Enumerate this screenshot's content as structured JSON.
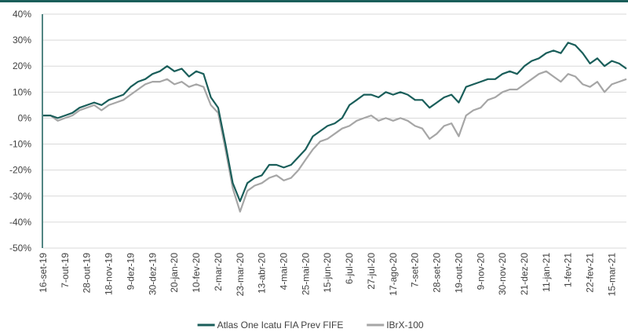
{
  "chart_data": {
    "type": "line",
    "x": [
      "16-set-19",
      null,
      null,
      "7-out-19",
      null,
      null,
      "28-out-19",
      null,
      null,
      "18-nov-19",
      null,
      null,
      "9-dez-19",
      null,
      null,
      "30-dez-19",
      null,
      null,
      "20-jan-20",
      null,
      null,
      "10-fev-20",
      null,
      null,
      "2-mar-20",
      null,
      null,
      "23-mar-20",
      null,
      null,
      "13-abr-20",
      null,
      null,
      "4-mai-20",
      null,
      null,
      "25-mai-20",
      null,
      null,
      "15-jun-20",
      null,
      null,
      "6-jul-20",
      null,
      null,
      "27-jul-20",
      null,
      null,
      "17-ago-20",
      null,
      null,
      "7-set-20",
      null,
      null,
      "28-set-20",
      null,
      null,
      "19-out-20",
      null,
      null,
      "9-nov-20",
      null,
      null,
      "30-nov-20",
      null,
      null,
      "21-dez-20",
      null,
      null,
      "11-jan-21",
      null,
      null,
      "1-fev-21",
      null,
      null,
      "22-fev-21",
      null,
      null,
      "15-mar-21",
      null,
      null
    ],
    "series": [
      {
        "name": "Atlas One Icatu FIA Prev FIFE",
        "color": "#1a5e5a",
        "values": [
          1,
          1,
          0,
          1,
          2,
          4,
          5,
          6,
          5,
          7,
          8,
          9,
          12,
          14,
          15,
          17,
          18,
          20,
          18,
          19,
          16,
          18,
          17,
          8,
          4,
          -10,
          -25,
          -32,
          -25,
          -23,
          -22,
          -18,
          -18,
          -19,
          -18,
          -15,
          -12,
          -7,
          -5,
          -3,
          -2,
          0,
          5,
          7,
          9,
          9,
          8,
          10,
          9,
          10,
          9,
          7,
          7,
          4,
          6,
          8,
          9,
          6,
          12,
          13,
          14,
          15,
          15,
          17,
          18,
          17,
          20,
          22,
          23,
          25,
          26,
          25,
          29,
          28,
          25,
          21,
          23,
          20,
          22,
          21,
          19
        ]
      },
      {
        "name": "IBrX-100",
        "color": "#a6a6a6",
        "values": [
          1,
          1,
          -1,
          0,
          1,
          3,
          4,
          5,
          3,
          5,
          6,
          7,
          9,
          11,
          13,
          14,
          14,
          15,
          13,
          14,
          12,
          13,
          12,
          5,
          2,
          -12,
          -27,
          -36,
          -28,
          -26,
          -25,
          -23,
          -22,
          -24,
          -23,
          -20,
          -16,
          -12,
          -9,
          -8,
          -6,
          -4,
          -3,
          -1,
          0,
          1,
          -1,
          0,
          -1,
          0,
          -1,
          -3,
          -4,
          -8,
          -6,
          -3,
          -2,
          -7,
          1,
          3,
          4,
          7,
          8,
          10,
          11,
          11,
          13,
          15,
          17,
          18,
          16,
          14,
          17,
          16,
          13,
          12,
          14,
          10,
          13,
          14,
          15
        ]
      }
    ],
    "ylim": [
      -50,
      40
    ],
    "yticks": [
      {
        "value": -50,
        "label": "-50%"
      },
      {
        "value": -40,
        "label": "-40%"
      },
      {
        "value": -30,
        "label": "-30%"
      },
      {
        "value": -20,
        "label": "-20%"
      },
      {
        "value": -10,
        "label": "-10%"
      },
      {
        "value": 0,
        "label": "0%"
      },
      {
        "value": 10,
        "label": "10%"
      },
      {
        "value": 20,
        "label": "20%"
      },
      {
        "value": 30,
        "label": "30%"
      },
      {
        "value": 40,
        "label": "40%"
      }
    ],
    "grid": true,
    "legend": "bottom"
  }
}
